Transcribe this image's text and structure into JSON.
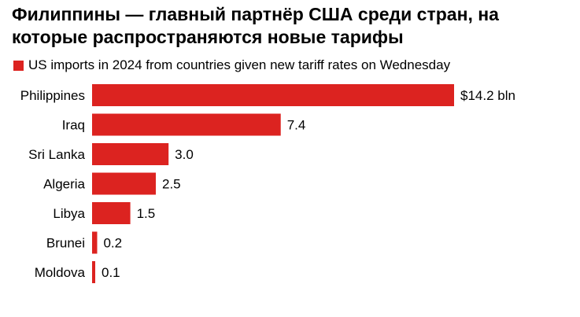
{
  "chart_data": {
    "type": "bar",
    "orientation": "horizontal",
    "title": "Филиппины — главный партнёр США среди стран, на которые распространяются новые тарифы",
    "legend": "US imports in 2024 from countries given new tariff rates on Wednesday",
    "categories": [
      "Philippines",
      "Iraq",
      "Sri Lanka",
      "Algeria",
      "Libya",
      "Brunei",
      "Moldova"
    ],
    "values": [
      14.2,
      7.4,
      3.0,
      2.5,
      1.5,
      0.2,
      0.1
    ],
    "labels": [
      "$14.2 bln",
      "7.4",
      "3.0",
      "2.5",
      "1.5",
      "0.2",
      "0.1"
    ],
    "unit": "bln USD",
    "xlim": [
      0,
      14.2
    ],
    "grid": false,
    "legend_position": "top-left",
    "color": "#dc2320"
  }
}
